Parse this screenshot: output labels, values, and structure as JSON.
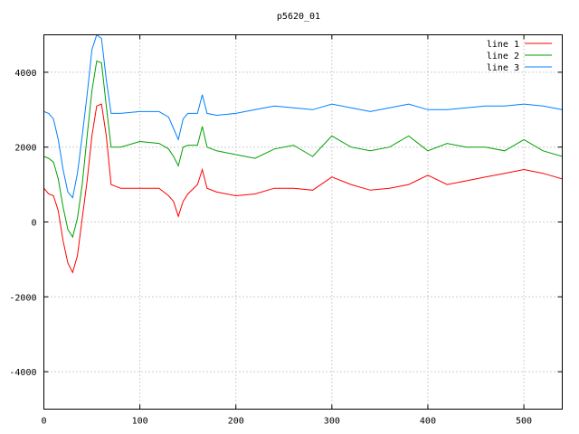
{
  "chart_data": {
    "type": "line",
    "title": "p5620_01",
    "xlabel": "",
    "ylabel": "",
    "xlim": [
      0,
      540
    ],
    "ylim": [
      -5000,
      5000
    ],
    "xticks": [
      0,
      100,
      200,
      300,
      400,
      500
    ],
    "yticks": [
      -4000,
      -2000,
      0,
      2000,
      4000
    ],
    "grid": true,
    "legend_position": "top-right",
    "x": [
      0,
      5,
      10,
      15,
      20,
      25,
      30,
      35,
      40,
      45,
      50,
      55,
      60,
      65,
      70,
      80,
      100,
      120,
      130,
      135,
      140,
      145,
      150,
      160,
      165,
      170,
      180,
      200,
      220,
      240,
      260,
      280,
      300,
      320,
      340,
      360,
      380,
      400,
      420,
      440,
      460,
      480,
      500,
      520,
      540
    ],
    "series": [
      {
        "name": "line 1",
        "color": "#ff0000",
        "values": [
          900,
          750,
          700,
          300,
          -500,
          -1100,
          -1350,
          -900,
          100,
          1100,
          2300,
          3100,
          3150,
          2300,
          1000,
          900,
          900,
          900,
          700,
          550,
          150,
          550,
          750,
          1000,
          1400,
          900,
          800,
          700,
          750,
          900,
          900,
          850,
          1200,
          1000,
          850,
          900,
          1000,
          1250,
          1000,
          1100,
          1200,
          1300,
          1400,
          1300,
          1150
        ]
      },
      {
        "name": "line 2",
        "color": "#00a000",
        "values": [
          1750,
          1700,
          1600,
          1150,
          400,
          -200,
          -400,
          100,
          1000,
          2300,
          3500,
          4300,
          4250,
          3100,
          2000,
          2000,
          2150,
          2100,
          1950,
          1750,
          1500,
          2000,
          2050,
          2050,
          2550,
          2000,
          1900,
          1800,
          1700,
          1950,
          2050,
          1750,
          2300,
          2000,
          1900,
          2000,
          2300,
          1900,
          2100,
          2000,
          2000,
          1900,
          2200,
          1900,
          1750
        ]
      },
      {
        "name": "line 3",
        "color": "#0080ff",
        "values": [
          2950,
          2900,
          2750,
          2200,
          1400,
          800,
          650,
          1300,
          2300,
          3400,
          4600,
          5000,
          4900,
          3800,
          2900,
          2900,
          2950,
          2950,
          2800,
          2500,
          2200,
          2750,
          2900,
          2900,
          3400,
          2900,
          2850,
          2900,
          3000,
          3100,
          3050,
          3000,
          3150,
          3050,
          2950,
          3050,
          3150,
          3000,
          3000,
          3050,
          3100,
          3100,
          3150,
          3100,
          3000
        ]
      }
    ]
  }
}
